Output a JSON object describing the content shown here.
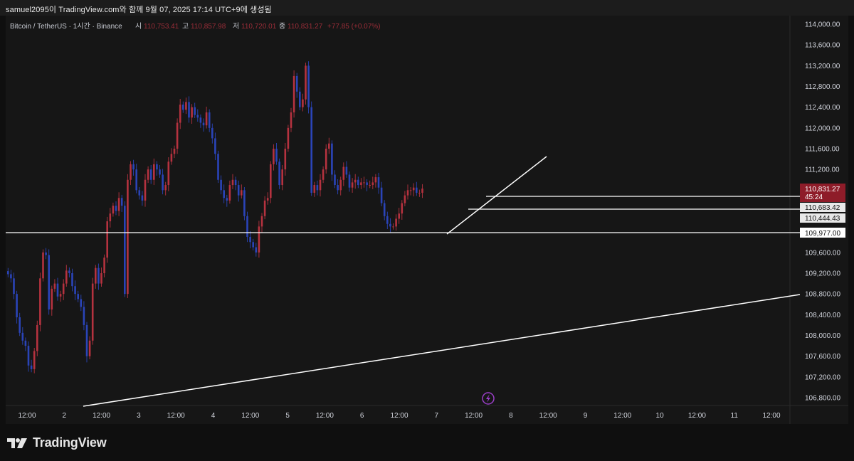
{
  "header": {
    "attribution": "samuel2095이 TradingView.com와 함께 9월 07, 2025 17:14 UTC+9에 생성됨"
  },
  "legend": {
    "symbol": "Bitcoin / TetherUS · 1시간 · Binance",
    "open_label": "시",
    "open_value": "110,753.41",
    "high_label": "고",
    "high_value": "110,857.98",
    "low_label": "저",
    "low_value": "110,720.01",
    "close_label": "종",
    "close_value": "110,831.27",
    "change": "+77.85 (+0.07%)"
  },
  "colors": {
    "up": "#b5323f",
    "down": "#2a44b8",
    "background": "#161616",
    "price_tag": "#8e1c29",
    "drawing": "#ffffff"
  },
  "y_axis": {
    "ticks": [
      "114,000.00",
      "113,600.00",
      "113,200.00",
      "112,800.00",
      "112,400.00",
      "112,000.00",
      "111,600.00",
      "111,200.00",
      "109,600.00",
      "109,200.00",
      "108,800.00",
      "108,400.00",
      "108,000.00",
      "107,600.00",
      "107,200.00",
      "106,800.00"
    ],
    "current_price": "110,831.27",
    "countdown": "45:24",
    "level_1": "110,683.42",
    "level_2": "110,444.43",
    "level_3": "109,977.00"
  },
  "x_axis": {
    "ticks": [
      "12:00",
      "2",
      "12:00",
      "3",
      "12:00",
      "4",
      "12:00",
      "5",
      "12:00",
      "6",
      "12:00",
      "7",
      "12:00",
      "8",
      "12:00",
      "9",
      "12:00",
      "10",
      "12:00",
      "11",
      "12:00"
    ]
  },
  "footer": {
    "brand": "TradingView"
  },
  "chart_data": {
    "type": "candlestick",
    "symbol": "BTCUSDT",
    "interval": "1h",
    "ylim": [
      106650,
      114200
    ],
    "scale": "linear",
    "grid": false,
    "closes": [
      109180,
      109100,
      108800,
      108350,
      108050,
      107900,
      107800,
      107420,
      107350,
      107700,
      108200,
      109100,
      109600,
      109550,
      108500,
      108900,
      109000,
      108750,
      108800,
      109000,
      109250,
      109200,
      108950,
      108800,
      108700,
      108550,
      108200,
      107600,
      107900,
      109000,
      109300,
      109000,
      109200,
      109500,
      110200,
      110350,
      110500,
      110400,
      110650,
      110500,
      108800,
      111000,
      111300,
      111200,
      110800,
      110700,
      110600,
      111000,
      111200,
      111000,
      111300,
      111200,
      111100,
      110800,
      110900,
      111350,
      111500,
      111600,
      112100,
      112450,
      112350,
      112500,
      112200,
      112400,
      112250,
      112200,
      112100,
      112050,
      112300,
      112000,
      111800,
      111500,
      111000,
      110800,
      110650,
      110600,
      110900,
      111000,
      110900,
      110700,
      110800,
      110300,
      109900,
      109800,
      109700,
      109600,
      110100,
      110300,
      110600,
      110650,
      111300,
      111600,
      111350,
      110900,
      111200,
      111600,
      112000,
      112300,
      113000,
      112700,
      112400,
      112550,
      113200,
      112400,
      110750,
      110900,
      110800,
      111000,
      111200,
      111600,
      111700,
      111100,
      110900,
      110800,
      111000,
      111250,
      111100,
      110850,
      110950,
      111000,
      110900,
      110950,
      110950,
      110900,
      110900,
      110950,
      111050,
      110850,
      110550,
      110300,
      110150,
      110100,
      110100,
      110250,
      110350,
      110550,
      110700,
      110800,
      110800,
      110850,
      110750,
      110750,
      110831
    ]
  }
}
